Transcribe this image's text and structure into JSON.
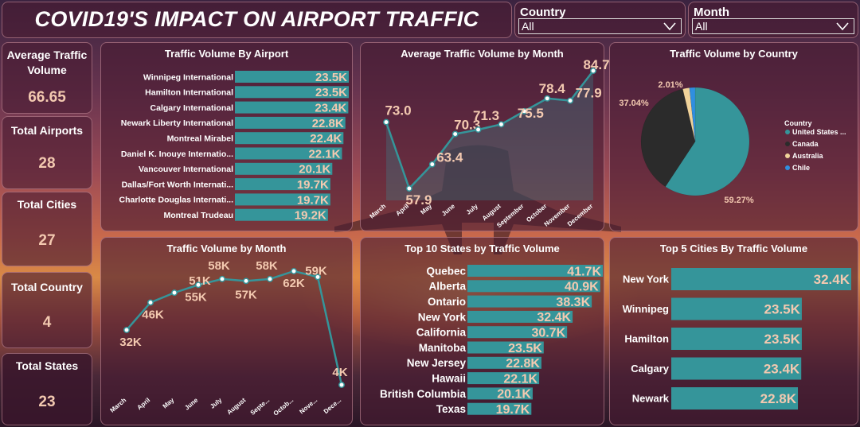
{
  "header": {
    "title": "COVID19'S IMPACT ON AIRPORT TRAFFIC"
  },
  "filters": [
    {
      "label": "Country",
      "value": "All"
    },
    {
      "label": "Month",
      "value": "All"
    }
  ],
  "kpis": [
    {
      "title": "Average Traffic Volume",
      "value": "66.65"
    },
    {
      "title": "Total Airports",
      "value": "28"
    },
    {
      "title": "Total Cities",
      "value": "27"
    },
    {
      "title": "Total Country",
      "value": "4"
    },
    {
      "title": "Total States",
      "value": "23"
    }
  ],
  "colors": {
    "bar": "#35959a",
    "line": "#35959a",
    "label": "#f3c9b0",
    "white": "#ffffff",
    "pie_us": "#35959a",
    "pie_canada": "#2b2b2b",
    "pie_australia": "#f0d39a",
    "pie_chile": "#2f8fe0"
  },
  "chart_data": [
    {
      "id": "airport",
      "type": "bar",
      "title": "Traffic Volume By Airport",
      "categories": [
        "Winnipeg International",
        "Hamilton International",
        "Calgary International",
        "Newark Liberty International",
        "Montreal Mirabel",
        "Daniel K. Inouye Internatio...",
        "Vancouver International",
        "Dallas/Fort Worth Internati...",
        "Charlotte Douglas Internati...",
        "Montreal Trudeau"
      ],
      "values": [
        23500,
        23500,
        23400,
        22800,
        22400,
        22100,
        20100,
        19700,
        19700,
        19200
      ],
      "data_labels": [
        "23.5K",
        "23.5K",
        "23.4K",
        "22.8K",
        "22.4K",
        "22.1K",
        "20.1K",
        "19.7K",
        "19.7K",
        "19.2K"
      ]
    },
    {
      "id": "avgmonth",
      "type": "area",
      "title": "Average Traffic Volume by Month",
      "categories": [
        "March",
        "April",
        "May",
        "June",
        "July",
        "August",
        "September",
        "October",
        "November",
        "December"
      ],
      "values": [
        73.0,
        57.9,
        63.4,
        70.3,
        71.3,
        72.5,
        75.5,
        78.4,
        77.9,
        84.7
      ],
      "data_labels": [
        "73.0",
        "57.9",
        "63.4",
        "70.3",
        "71.3",
        "",
        "75.5",
        "78.4",
        "77.9",
        "84.7"
      ]
    },
    {
      "id": "country",
      "type": "pie",
      "title": "Traffic Volume by Country",
      "legend_title": "Country",
      "labels": [
        "United States ...",
        "Canada",
        "Australia",
        "Chile"
      ],
      "values": [
        59.27,
        37.04,
        2.01,
        1.68
      ],
      "data_labels": [
        "59.27%",
        "37.04%",
        "2.01%",
        ""
      ],
      "legend": "right"
    },
    {
      "id": "month",
      "type": "line",
      "title": "Traffic Volume by Month",
      "categories": [
        "March",
        "April",
        "May",
        "June",
        "July",
        "August",
        "Septe...",
        "Octob...",
        "Nove...",
        "Dece..."
      ],
      "values": [
        32000,
        46000,
        51000,
        55000,
        58000,
        57000,
        58000,
        62000,
        59000,
        4000
      ],
      "data_labels": [
        "32K",
        "46K",
        "51K",
        "55K",
        "58K",
        "57K",
        "58K",
        "62K",
        "59K",
        "4K"
      ]
    },
    {
      "id": "states",
      "type": "bar",
      "title": "Top 10 States by Traffic Volume",
      "categories": [
        "Quebec",
        "Alberta",
        "Ontario",
        "New York",
        "California",
        "Manitoba",
        "New Jersey",
        "Hawaii",
        "British Columbia",
        "Texas"
      ],
      "values": [
        41700,
        40900,
        38300,
        32400,
        30700,
        23500,
        22800,
        22100,
        20100,
        19700
      ],
      "data_labels": [
        "41.7K",
        "40.9K",
        "38.3K",
        "32.4K",
        "30.7K",
        "23.5K",
        "22.8K",
        "22.1K",
        "20.1K",
        "19.7K"
      ]
    },
    {
      "id": "cities",
      "type": "bar",
      "title": "Top 5 Cities By Traffic Volume",
      "categories": [
        "New York",
        "Winnipeg",
        "Hamilton",
        "Calgary",
        "Newark"
      ],
      "values": [
        32400,
        23500,
        23500,
        23400,
        22800
      ],
      "data_labels": [
        "32.4K",
        "23.5K",
        "23.5K",
        "23.4K",
        "22.8K"
      ]
    }
  ]
}
